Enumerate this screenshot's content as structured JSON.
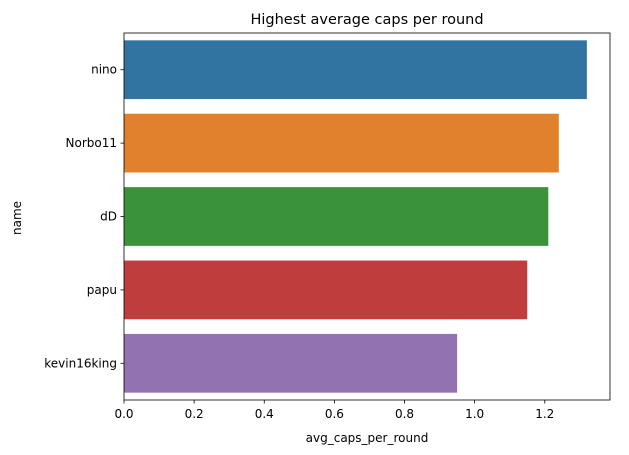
{
  "chart_data": {
    "type": "bar",
    "orientation": "horizontal",
    "title": "Highest average caps per round",
    "xlabel": "avg_caps_per_round",
    "ylabel": "name",
    "categories": [
      "nino",
      "Norbo11",
      "dD",
      "papu",
      "kevin16king"
    ],
    "values": [
      1.32,
      1.24,
      1.21,
      1.15,
      0.95
    ],
    "colors": [
      "#3274a1",
      "#e1812c",
      "#3a923a",
      "#c03d3e",
      "#9372b2"
    ],
    "xlim": [
      0,
      1.386
    ],
    "xticks": [
      "0.0",
      "0.2",
      "0.4",
      "0.6",
      "0.8",
      "1.0",
      "1.2"
    ],
    "grid": false,
    "legend": "none"
  }
}
